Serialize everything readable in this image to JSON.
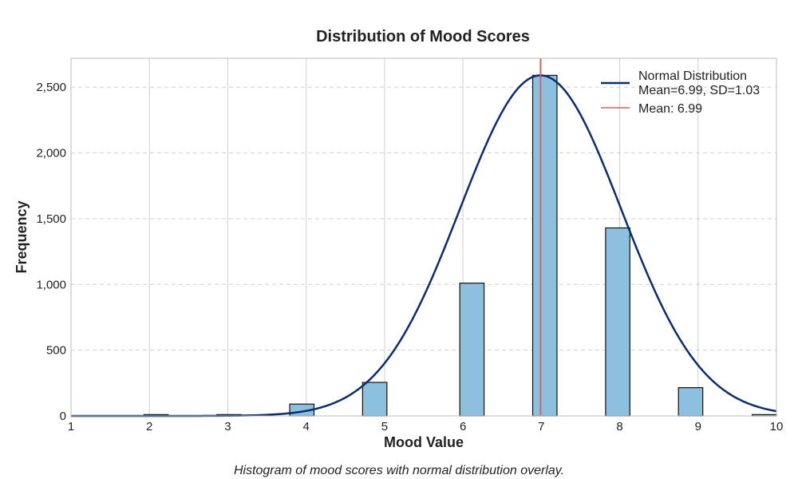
{
  "chart_data": {
    "type": "bar",
    "title": "Distribution of Mood Scores",
    "xlabel": "Mood Value",
    "ylabel": "Frequency",
    "caption": "Histogram of mood scores with normal distribution overlay.",
    "xlim": [
      1,
      10
    ],
    "ylim": [
      0,
      2720
    ],
    "x_ticks": [
      1,
      2,
      3,
      4,
      5,
      6,
      7,
      8,
      9,
      10
    ],
    "x_tick_labels": [
      "1",
      "2",
      "3",
      "4",
      "5",
      "6",
      "7",
      "8",
      "9",
      "10"
    ],
    "y_ticks": [
      0,
      500,
      1000,
      1500,
      2000,
      2500
    ],
    "y_tick_labels": [
      "0",
      "500",
      "1,000",
      "1,500",
      "2,000",
      "2,500"
    ],
    "grid": true,
    "legend_position": "top-right",
    "bins": [
      {
        "x0": 1.93,
        "x1": 2.24,
        "value": 10
      },
      {
        "x0": 2.86,
        "x1": 3.17,
        "value": 10
      },
      {
        "x0": 3.79,
        "x1": 4.1,
        "value": 90
      },
      {
        "x0": 4.72,
        "x1": 5.03,
        "value": 255
      },
      {
        "x0": 5.96,
        "x1": 6.27,
        "value": 1010
      },
      {
        "x0": 6.89,
        "x1": 7.2,
        "value": 2590
      },
      {
        "x0": 7.82,
        "x1": 8.13,
        "value": 1430
      },
      {
        "x0": 8.75,
        "x1": 9.06,
        "value": 215
      },
      {
        "x0": 9.69,
        "x1": 10.0,
        "value": 10
      }
    ],
    "normal_curve": {
      "label_line1": "Normal Distribution",
      "label_line2": "Mean=6.99, SD=1.03",
      "mean": 6.99,
      "sd": 1.03,
      "peak": 2590
    },
    "mean_line": {
      "label": "Mean: 6.99",
      "value": 6.99
    },
    "colors": {
      "bar_fill": "#8dbfdf",
      "bar_edge": "#111111",
      "curve": "#0b2e6b",
      "mean_line": "#e05a5a",
      "grid": "#d0d0d0",
      "axis_frame": "#bbbbbb"
    }
  }
}
